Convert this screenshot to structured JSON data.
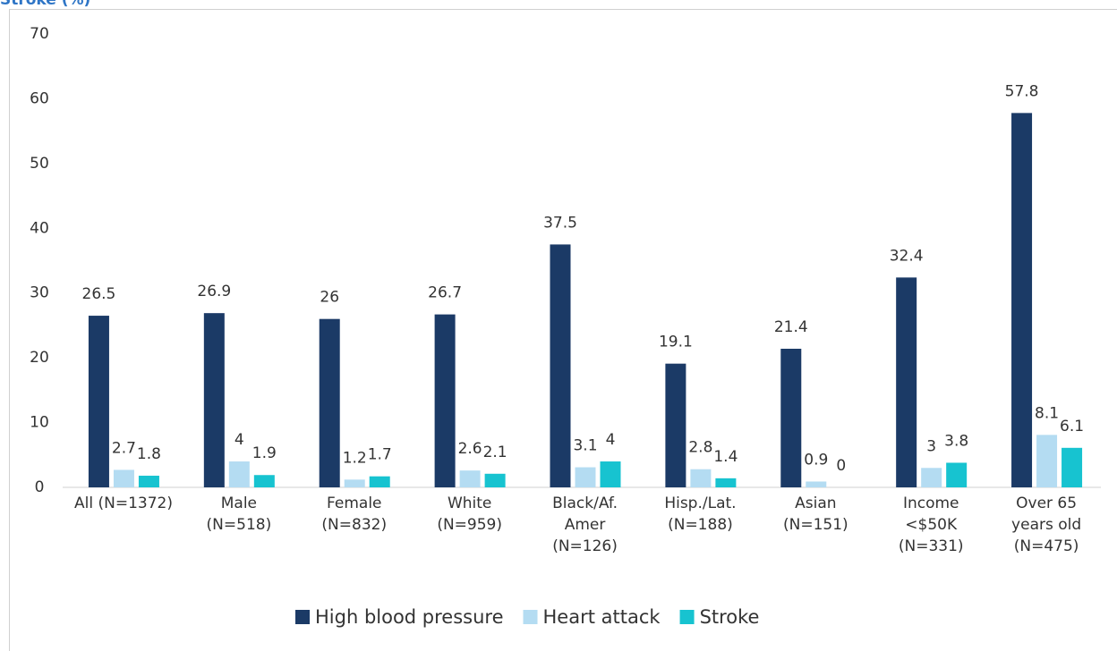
{
  "chart_data": {
    "type": "bar",
    "title": "Stroke (%)",
    "categories": [
      "All (N=1372)",
      "Male\n(N=518)",
      "Female\n(N=832)",
      "White\n(N=959)",
      "Black/Af.\nAmer\n(N=126)",
      "Hisp./Lat.\n(N=188)",
      "Asian\n(N=151)",
      "Income\n<$50K\n(N=331)",
      "Over 65\nyears old\n(N=475)"
    ],
    "series": [
      {
        "name": "High blood pressure",
        "color": "#1b3a66",
        "values": [
          26.5,
          26.9,
          26,
          26.7,
          37.5,
          19.1,
          21.4,
          32.4,
          57.8
        ]
      },
      {
        "name": "Heart attack",
        "color": "#b4dcf2",
        "values": [
          2.7,
          4,
          1.2,
          2.6,
          3.1,
          2.8,
          0.9,
          3,
          8.1
        ]
      },
      {
        "name": "Stroke",
        "color": "#17c3d0",
        "values": [
          1.8,
          1.9,
          1.7,
          2.1,
          4,
          1.4,
          0,
          3.8,
          6.1
        ]
      }
    ],
    "ylim": [
      0,
      70
    ],
    "yticks": [
      0,
      10,
      20,
      30,
      40,
      50,
      60,
      70
    ],
    "grid": false,
    "legend": "bottom"
  }
}
